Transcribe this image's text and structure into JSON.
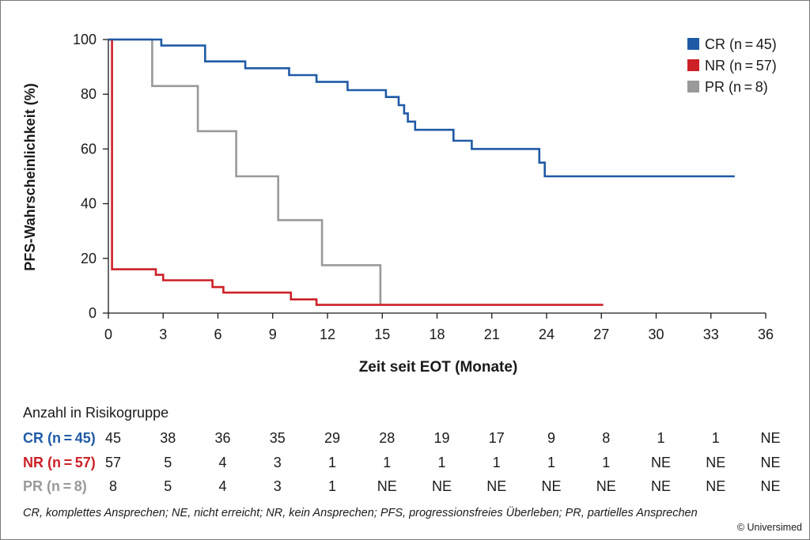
{
  "chart_data": {
    "type": "line",
    "step": true,
    "xlabel": "Zeit seit EOT (Monate)",
    "ylabel": "PFS-Wahrscheinlichkeit (%)",
    "xlim": [
      0,
      36
    ],
    "ylim": [
      0,
      100
    ],
    "x_ticks": [
      "0",
      "3",
      "6",
      "9",
      "12",
      "15",
      "18",
      "21",
      "24",
      "27",
      "30",
      "33",
      "36"
    ],
    "y_ticks": [
      "0",
      "20",
      "40",
      "60",
      "80",
      "100"
    ],
    "grid": false,
    "legend_position": "top-right",
    "series": [
      {
        "name": "CR (n = 45)",
        "color": "#1f5aa6",
        "points": [
          [
            0,
            100
          ],
          [
            2.9,
            100
          ],
          [
            2.9,
            97.8
          ],
          [
            5.3,
            97.8
          ],
          [
            5.3,
            92
          ],
          [
            7.5,
            92
          ],
          [
            7.5,
            89.5
          ],
          [
            9.9,
            89.5
          ],
          [
            9.9,
            87
          ],
          [
            11.4,
            87
          ],
          [
            11.4,
            84.5
          ],
          [
            13.1,
            84.5
          ],
          [
            13.1,
            81.5
          ],
          [
            15.2,
            81.5
          ],
          [
            15.2,
            79
          ],
          [
            15.9,
            79
          ],
          [
            15.9,
            76
          ],
          [
            16.2,
            76
          ],
          [
            16.2,
            73
          ],
          [
            16.4,
            73
          ],
          [
            16.4,
            70
          ],
          [
            16.8,
            70
          ],
          [
            16.8,
            67
          ],
          [
            18.9,
            67
          ],
          [
            18.9,
            63
          ],
          [
            19.9,
            63
          ],
          [
            19.9,
            60
          ],
          [
            23.6,
            60
          ],
          [
            23.6,
            55
          ],
          [
            23.9,
            55
          ],
          [
            23.9,
            50
          ],
          [
            34.3,
            50
          ]
        ]
      },
      {
        "name": "NR (n = 57)",
        "color": "#cc2127",
        "points": [
          [
            0,
            100
          ],
          [
            0.2,
            100
          ],
          [
            0.2,
            16
          ],
          [
            2.6,
            16
          ],
          [
            2.6,
            14
          ],
          [
            3.0,
            14
          ],
          [
            3.0,
            12
          ],
          [
            5.7,
            12
          ],
          [
            5.7,
            9.5
          ],
          [
            6.3,
            9.5
          ],
          [
            6.3,
            7.5
          ],
          [
            10.0,
            7.5
          ],
          [
            10.0,
            5
          ],
          [
            11.4,
            5
          ],
          [
            11.4,
            3
          ],
          [
            27.1,
            3
          ]
        ]
      },
      {
        "name": "PR (n = 8)",
        "color": "#999999",
        "points": [
          [
            0,
            100
          ],
          [
            2.4,
            100
          ],
          [
            2.4,
            83
          ],
          [
            4.9,
            83
          ],
          [
            4.9,
            66.5
          ],
          [
            7.0,
            66.5
          ],
          [
            7.0,
            50
          ],
          [
            9.3,
            50
          ],
          [
            9.3,
            34
          ],
          [
            11.7,
            34
          ],
          [
            11.7,
            17.5
          ],
          [
            14.9,
            17.5
          ],
          [
            14.9,
            3
          ]
        ]
      }
    ]
  },
  "risk_table": {
    "title": "Anzahl in Risikogruppe",
    "rows": [
      {
        "label": "CR (n = 45)",
        "color": "#1f5aa6",
        "values": [
          "45",
          "38",
          "36",
          "35",
          "29",
          "28",
          "19",
          "17",
          "9",
          "8",
          "1",
          "1",
          "NE"
        ]
      },
      {
        "label": "NR (n = 57)",
        "color": "#cc2127",
        "values": [
          "57",
          "5",
          "4",
          "3",
          "1",
          "1",
          "1",
          "1",
          "1",
          "1",
          "NE",
          "NE",
          "NE"
        ]
      },
      {
        "label": "PR (n = 8)",
        "color": "#999999",
        "values": [
          "8",
          "5",
          "4",
          "3",
          "1",
          "NE",
          "NE",
          "NE",
          "NE",
          "NE",
          "NE",
          "NE",
          "NE"
        ]
      }
    ]
  },
  "footnote": "CR, komplettes Ansprechen; NE, nicht erreicht; NR, kein Ansprechen; PFS, progressionsfreies Überleben; PR, partielles Ansprechen",
  "copyright": "© Universimed"
}
